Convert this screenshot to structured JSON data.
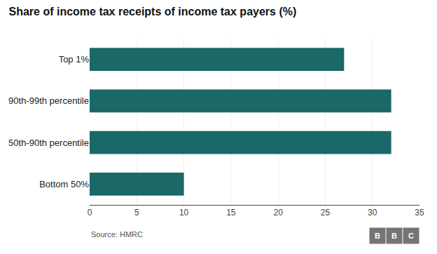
{
  "chart_data": {
    "type": "bar",
    "orientation": "horizontal",
    "title": "Share of income tax receipts of income tax payers (%)",
    "categories": [
      "Top 1%",
      "90th-99th percentile",
      "50th-90th percentile",
      "Bottom 50%"
    ],
    "values": [
      27,
      32,
      32,
      10
    ],
    "color": "#1a6868",
    "xlim": [
      0,
      35
    ],
    "xticks": [
      0,
      5,
      10,
      15,
      20,
      25,
      30,
      35
    ],
    "grid": true,
    "annotations": [
      "Source: HMRC",
      "BBC"
    ]
  }
}
